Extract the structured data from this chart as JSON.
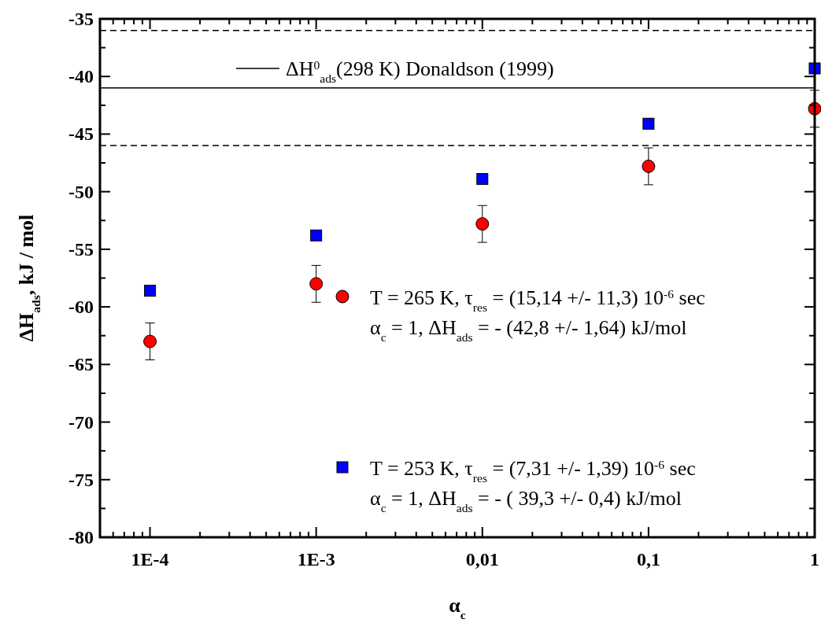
{
  "chart_data": {
    "type": "scatter",
    "xlabel": "α$_{c}$",
    "ylabel": "ΔH$_{ads}$, kJ / mol",
    "log": "x",
    "xlim": [
      5e-05,
      1
    ],
    "xticks": [
      {
        "value": 5e-05,
        "label": null
      },
      {
        "value": 6e-05,
        "label": null
      },
      {
        "value": 7e-05,
        "label": null
      },
      {
        "value": 8e-05,
        "label": null
      },
      {
        "value": 9e-05,
        "label": null
      },
      {
        "value": 0.0001,
        "label": "1E-4"
      },
      {
        "value": 0.0002,
        "label": null
      },
      {
        "value": 0.0003,
        "label": null
      },
      {
        "value": 0.0004,
        "label": null
      },
      {
        "value": 0.0005,
        "label": null
      },
      {
        "value": 0.0006,
        "label": null
      },
      {
        "value": 0.0007,
        "label": null
      },
      {
        "value": 0.0008,
        "label": null
      },
      {
        "value": 0.0009,
        "label": null
      },
      {
        "value": 0.001,
        "label": "1E-3"
      },
      {
        "value": 0.002,
        "label": null
      },
      {
        "value": 0.003,
        "label": null
      },
      {
        "value": 0.004,
        "label": null
      },
      {
        "value": 0.005,
        "label": null
      },
      {
        "value": 0.006,
        "label": null
      },
      {
        "value": 0.007,
        "label": null
      },
      {
        "value": 0.008,
        "label": null
      },
      {
        "value": 0.009,
        "label": null
      },
      {
        "value": 0.01,
        "label": "0,01"
      },
      {
        "value": 0.02,
        "label": null
      },
      {
        "value": 0.03,
        "label": null
      },
      {
        "value": 0.04,
        "label": null
      },
      {
        "value": 0.05,
        "label": null
      },
      {
        "value": 0.06,
        "label": null
      },
      {
        "value": 0.07,
        "label": null
      },
      {
        "value": 0.08,
        "label": null
      },
      {
        "value": 0.09,
        "label": null
      },
      {
        "value": 0.1,
        "label": "0,1"
      },
      {
        "value": 0.2,
        "label": null
      },
      {
        "value": 0.3,
        "label": null
      },
      {
        "value": 0.4,
        "label": null
      },
      {
        "value": 0.5,
        "label": null
      },
      {
        "value": 0.6,
        "label": null
      },
      {
        "value": 0.7,
        "label": null
      },
      {
        "value": 0.8,
        "label": null
      },
      {
        "value": 0.9,
        "label": null
      },
      {
        "value": 1,
        "label": "1"
      }
    ],
    "ylim": [
      -80,
      -35
    ],
    "yticks": [
      -80,
      {
        "value": -77.5,
        "label": null
      },
      -75,
      {
        "value": -72.5,
        "label": null
      },
      -70,
      {
        "value": -67.5,
        "label": null
      },
      -65,
      {
        "value": -62.5,
        "label": null
      },
      -60,
      {
        "value": -57.5,
        "label": null
      },
      -55,
      {
        "value": -52.5,
        "label": null
      },
      -50,
      {
        "value": -47.5,
        "label": null
      },
      -45,
      {
        "value": -42.5,
        "label": null
      },
      -40,
      {
        "value": -37.5,
        "label": null
      },
      -35
    ],
    "x": [
      0.0001,
      0.001,
      0.01,
      0.1,
      1
    ],
    "legend": "top right",
    "grid": false,
    "series": [
      {
        "name": "T = 265 K, τ$_{res}$ = (15,14 +/- 11,3) 10$^{-6}$ sec",
        "color": "#ff0000",
        "marker": "circle",
        "values": [
          -63,
          -58,
          -52.8,
          -47.8,
          -42.8
        ],
        "errors": [
          1.6,
          1.6,
          1.6,
          1.6,
          1.6
        ]
      },
      {
        "name": "T = 253 K, τ$_{res}$ = (7,31 +/- 1,39) 10$^{-6}$ sec",
        "color": "#0000ff",
        "marker": "square",
        "values": [
          -58.6,
          -53.8,
          -48.9,
          -44.1,
          -39.3
        ]
      }
    ],
    "annotations": [
      "α$_{c}$ = 1, ΔH$_{ads}$ = - (42,8 +/- 1,64) kJ/mol",
      "α$_{c}$ = 1, ΔH$_{ads}$ = - ( 39,3 +/- 0,4) kJ/mol"
    ],
    "ref_lines": [
      {
        "axis": "y",
        "value": -41,
        "label": "ΔH$^{0}$$_{ads}$(298 K) Donaldson (1999)",
        "line_style": "solid",
        "color": "#000000"
      },
      {
        "axis": "y",
        "value": -36,
        "line_style": "dashed",
        "color": "#000000"
      },
      {
        "axis": "y",
        "value": -46,
        "line_style": "dashed",
        "color": "#000000"
      }
    ]
  }
}
